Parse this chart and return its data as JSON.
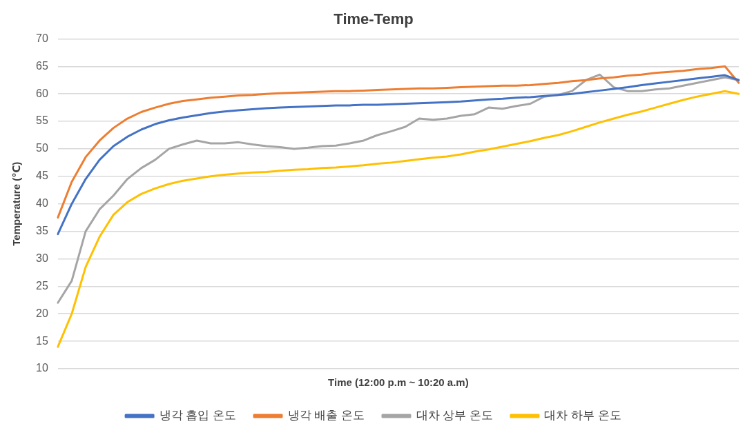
{
  "chart_data": {
    "type": "line",
    "title": "Time-Temp",
    "xlabel": "Time (12:00 p.m ~ 10:20 a.m)",
    "ylabel": "Temperature (℃)",
    "categories": [
      null,
      null,
      null,
      null,
      null,
      null,
      null,
      null,
      null,
      null,
      null,
      null,
      null,
      null,
      null,
      null,
      null,
      null,
      null,
      null,
      null,
      null,
      null,
      null,
      null,
      null,
      null,
      null,
      null,
      null,
      null,
      null,
      null,
      null,
      null,
      null,
      null,
      null,
      null,
      null,
      null,
      null,
      null,
      null,
      null,
      null,
      null,
      null,
      null,
      null
    ],
    "ylim": [
      10,
      70
    ],
    "yticks": [
      10,
      15,
      20,
      25,
      30,
      35,
      40,
      45,
      50,
      55,
      60,
      65,
      70
    ],
    "grid": "y",
    "legend": "bottom",
    "marker": "none",
    "line_style": "solid",
    "series": [
      {
        "name": "냉각 흡입 온도",
        "color": "#4472c4",
        "values": [
          34.5,
          40,
          44.5,
          48,
          50.5,
          52.2,
          53.5,
          54.5,
          55.2,
          55.7,
          56.1,
          56.5,
          56.8,
          57,
          57.2,
          57.4,
          57.5,
          57.6,
          57.7,
          57.8,
          57.9,
          57.9,
          58,
          58,
          58.1,
          58.2,
          58.3,
          58.4,
          58.5,
          58.6,
          58.8,
          59,
          59.1,
          59.3,
          59.4,
          59.6,
          59.8,
          60,
          60.3,
          60.6,
          60.9,
          61.2,
          61.6,
          61.9,
          62.2,
          62.5,
          62.8,
          63.1,
          63.4,
          62.5
        ]
      },
      {
        "name": "냉각 배출 온도",
        "color": "#ed7d31",
        "values": [
          37.5,
          44,
          48.5,
          51.5,
          53.8,
          55.5,
          56.7,
          57.5,
          58.2,
          58.7,
          59,
          59.3,
          59.5,
          59.7,
          59.8,
          60,
          60.1,
          60.2,
          60.3,
          60.4,
          60.5,
          60.5,
          60.6,
          60.7,
          60.8,
          60.9,
          61,
          61,
          61.1,
          61.2,
          61.3,
          61.4,
          61.5,
          61.5,
          61.6,
          61.8,
          62,
          62.3,
          62.5,
          62.8,
          63,
          63.3,
          63.5,
          63.8,
          64,
          64.2,
          64.5,
          64.7,
          65,
          62
        ]
      },
      {
        "name": "대차 상부 온도",
        "color": "#a5a5a5",
        "values": [
          22,
          26,
          35,
          39,
          41.5,
          44.5,
          46.5,
          48,
          50,
          50.8,
          51.5,
          51,
          51,
          51.2,
          50.8,
          50.5,
          50.3,
          50,
          50.2,
          50.5,
          50.6,
          51,
          51.5,
          52.5,
          53.2,
          54,
          55.5,
          55.3,
          55.5,
          56,
          56.3,
          57.5,
          57.3,
          57.8,
          58.2,
          59.5,
          59.8,
          60.5,
          62.5,
          63.5,
          61.2,
          60.5,
          60.5,
          60.8,
          61,
          61.5,
          62,
          62.5,
          63,
          62.5
        ]
      },
      {
        "name": "대차 하부 온도",
        "color": "#ffc000",
        "values": [
          14,
          20,
          28.5,
          34,
          38,
          40.3,
          41.8,
          42.8,
          43.6,
          44.2,
          44.6,
          45,
          45.3,
          45.5,
          45.7,
          45.8,
          46,
          46.2,
          46.3,
          46.5,
          46.6,
          46.8,
          47,
          47.3,
          47.5,
          47.8,
          48.1,
          48.4,
          48.6,
          49,
          49.5,
          49.9,
          50.4,
          50.9,
          51.4,
          52,
          52.5,
          53.2,
          54,
          54.8,
          55.5,
          56.2,
          56.8,
          57.5,
          58.2,
          58.9,
          59.5,
          60,
          60.5,
          60
        ]
      }
    ]
  }
}
